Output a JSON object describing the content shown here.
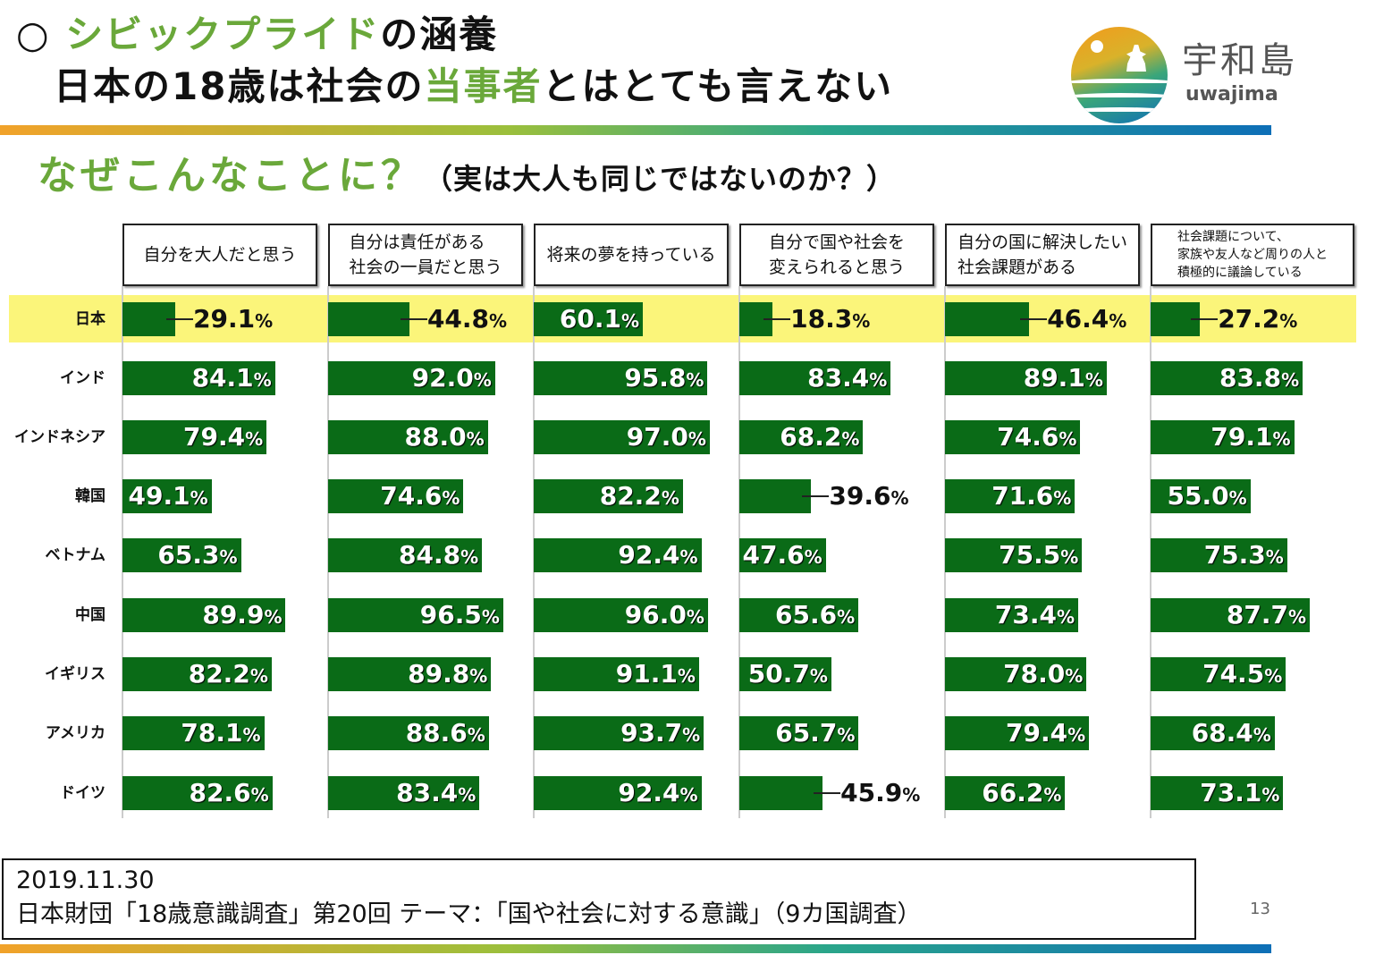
{
  "title": {
    "bullet": "○ ",
    "line1_green": "シビックプライド",
    "line1_rest": "の涵養",
    "line2_a": "日本の18歳は社会の",
    "line2_green": "当事者",
    "line2_b": "とはとても言えない"
  },
  "subtitle": {
    "question": "なぜこんなことに？",
    "aside": "（実は大人も同じではないのか？）"
  },
  "logo": {
    "kanji": "宇和島",
    "roman": "uwajima"
  },
  "colors": {
    "bar": "#0a6b17",
    "highlight": "#fbf57a",
    "accent": "#6aa83a"
  },
  "chart_data": {
    "type": "bar",
    "title": "",
    "xlim": [
      0,
      100
    ],
    "unit": "%",
    "categories": [
      "日本",
      "インド",
      "インドネシア",
      "韓国",
      "ベトナム",
      "中国",
      "イギリス",
      "アメリカ",
      "ドイツ"
    ],
    "highlight_category": "日本",
    "series": [
      {
        "name": "自分を大人だと思う",
        "values": [
          29.1,
          84.1,
          79.4,
          49.1,
          65.3,
          89.9,
          82.2,
          78.1,
          82.6
        ]
      },
      {
        "name": "自分は責任がある社会の一員だと思う",
        "values": [
          44.8,
          92.0,
          88.0,
          74.6,
          84.8,
          96.5,
          89.8,
          88.6,
          83.4
        ]
      },
      {
        "name": "将来の夢を持っている",
        "values": [
          60.1,
          95.8,
          97.0,
          82.2,
          92.4,
          96.0,
          91.1,
          93.7,
          92.4
        ]
      },
      {
        "name": "自分で国や社会を変えられると思う",
        "values": [
          18.3,
          83.4,
          68.2,
          39.6,
          47.6,
          65.6,
          50.7,
          65.7,
          45.9
        ]
      },
      {
        "name": "自分の国に解決したい社会課題がある",
        "values": [
          46.4,
          89.1,
          74.6,
          71.6,
          75.5,
          73.4,
          78.0,
          79.4,
          66.2
        ]
      },
      {
        "name": "社会課題について、家族や友人など周りの人と積極的に議論している",
        "values": [
          27.2,
          83.8,
          79.1,
          55.0,
          75.3,
          87.7,
          74.5,
          68.4,
          73.1
        ]
      }
    ],
    "header_lines": [
      [
        "自分を大人だと思う"
      ],
      [
        "自分は責任がある",
        "社会の一員だと思う"
      ],
      [
        "将来の夢を持っている"
      ],
      [
        "自分で国や社会を",
        "変えられると思う"
      ],
      [
        "自分の国に解決したい",
        "社会課題がある"
      ],
      [
        "社会課題について、",
        "家族や友人など周りの人と",
        "積極的に議論している"
      ]
    ]
  },
  "source": {
    "date": "2019.11.30",
    "text": "日本財団「18歳意識調査」第20回 テーマ：「国や社会に対する意識」（9カ国調査）"
  },
  "page_number": "13"
}
